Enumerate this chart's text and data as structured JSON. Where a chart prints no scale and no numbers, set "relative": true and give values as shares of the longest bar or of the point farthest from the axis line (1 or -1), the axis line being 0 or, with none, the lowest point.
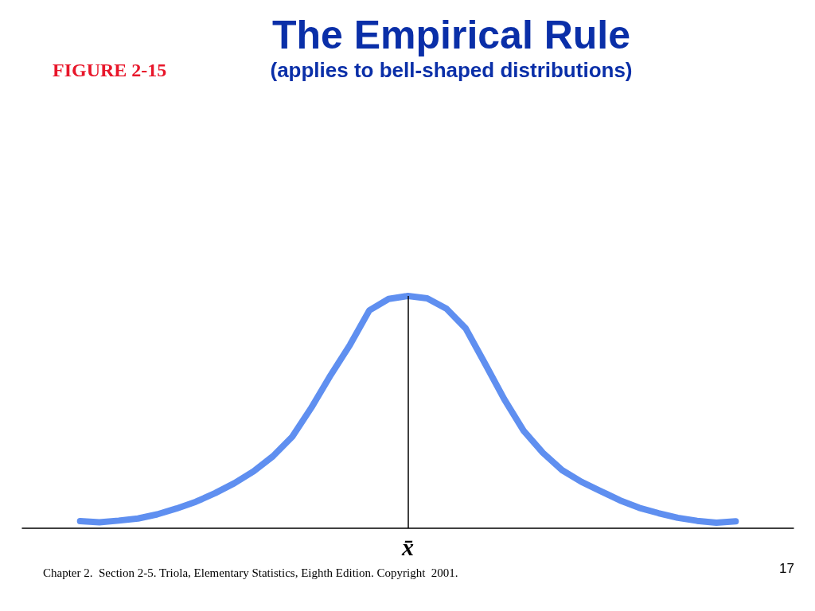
{
  "chart_data": {
    "type": "line",
    "title": "The Empirical Rule",
    "subtitle": "(applies to bell-shaped distributions)",
    "annotations": [
      "FIGURE 2-15",
      "Chapter 2.  Section 2-5. Triola, Elementary Statistics, Eighth Edition. Copyright  2001.",
      "17"
    ],
    "categories": [
      null,
      null,
      null,
      null,
      null,
      null,
      null,
      null,
      null,
      null,
      null,
      null,
      null,
      null,
      null,
      null,
      null,
      null,
      null,
      null,
      null,
      null,
      null,
      null,
      null,
      null,
      null,
      null,
      null,
      null,
      null,
      null,
      null,
      null,
      null,
      null,
      null,
      null,
      null,
      null,
      null
    ],
    "series": [
      {
        "color": "#5f8ff0",
        "values": [
          null,
          null,
          null,
          0.031,
          0.026,
          0.033,
          0.042,
          0.06,
          0.085,
          0.114,
          0.151,
          0.194,
          0.245,
          0.31,
          0.394,
          0.52,
          0.66,
          0.79,
          0.938,
          0.987,
          1,
          0.99,
          0.945,
          0.86,
          0.709,
          0.555,
          0.42,
          0.325,
          0.25,
          0.2,
          0.16,
          0.12,
          0.088,
          0.065,
          0.045,
          0.032,
          0.024,
          0.03,
          null,
          null,
          null
        ]
      }
    ],
    "relative": true,
    "line_style": "solid",
    "grid": false,
    "ref_lines": [
      {
        "axis": "x",
        "label": "x̄",
        "color": "#000000"
      }
    ]
  }
}
